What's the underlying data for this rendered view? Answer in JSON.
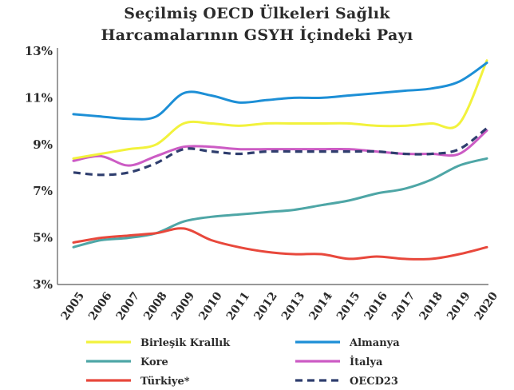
{
  "chart_data": {
    "type": "line",
    "title_lines": [
      "Seçilmiş OECD Ülkeleri Sağlık",
      "Harcamalarının GSYH İçindeki Payı"
    ],
    "xlabel": "",
    "ylabel": "",
    "x": [
      "2005",
      "2006",
      "2007",
      "2008",
      "2009",
      "2010",
      "2011",
      "2012",
      "2013",
      "2014",
      "2015",
      "2016",
      "2017",
      "2018",
      "2019",
      "2020"
    ],
    "ylim": [
      3,
      13
    ],
    "yticks": [
      3,
      5,
      7,
      9,
      11,
      13
    ],
    "ytick_labels": [
      "3%",
      "5%",
      "7%",
      "9%",
      "11%",
      "13%"
    ],
    "grid": false,
    "legend_position": "bottom",
    "series": [
      {
        "name": "Birleşik Krallık",
        "color": "#f2f23c",
        "dash": false,
        "values": [
          8.4,
          8.6,
          8.8,
          9.0,
          9.9,
          9.9,
          9.8,
          9.9,
          9.9,
          9.9,
          9.9,
          9.8,
          9.8,
          9.9,
          9.9,
          12.6
        ]
      },
      {
        "name": "Almanya",
        "color": "#1d8fd6",
        "dash": false,
        "values": [
          10.3,
          10.2,
          10.1,
          10.2,
          11.2,
          11.1,
          10.8,
          10.9,
          11.0,
          11.0,
          11.1,
          11.2,
          11.3,
          11.4,
          11.7,
          12.5
        ]
      },
      {
        "name": "Kore",
        "color": "#4ea6a6",
        "dash": false,
        "values": [
          4.6,
          4.9,
          5.0,
          5.2,
          5.7,
          5.9,
          6.0,
          6.1,
          6.2,
          6.4,
          6.6,
          6.9,
          7.1,
          7.5,
          8.1,
          8.4
        ]
      },
      {
        "name": "İtalya",
        "color": "#cc5bc4",
        "dash": false,
        "values": [
          8.3,
          8.5,
          8.1,
          8.5,
          8.9,
          8.9,
          8.8,
          8.8,
          8.8,
          8.8,
          8.8,
          8.7,
          8.6,
          8.6,
          8.6,
          9.6
        ]
      },
      {
        "name": "Türkiye*",
        "color": "#e8483c",
        "dash": false,
        "values": [
          4.8,
          5.0,
          5.1,
          5.2,
          5.4,
          4.9,
          4.6,
          4.4,
          4.3,
          4.3,
          4.1,
          4.2,
          4.1,
          4.1,
          4.3,
          4.6
        ]
      },
      {
        "name": "OECD23",
        "color": "#2f3e6e",
        "dash": true,
        "values": [
          7.8,
          7.7,
          7.8,
          8.2,
          8.8,
          8.7,
          8.6,
          8.7,
          8.7,
          8.7,
          8.7,
          8.7,
          8.6,
          8.6,
          8.8,
          9.7
        ]
      }
    ]
  }
}
